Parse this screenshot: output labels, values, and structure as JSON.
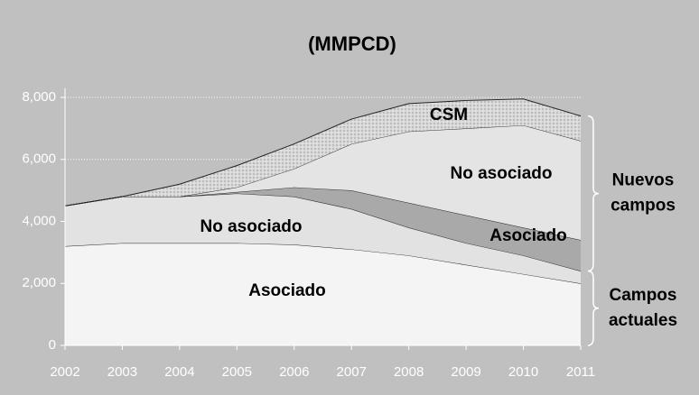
{
  "chart_data": {
    "type": "stacked_area",
    "title": "(MMPCD)",
    "x": [
      2002,
      2003,
      2004,
      2005,
      2006,
      2007,
      2008,
      2009,
      2010,
      2011
    ],
    "xlim": [
      2002,
      2011
    ],
    "xticks": [
      2002,
      2003,
      2004,
      2005,
      2006,
      2007,
      2008,
      2009,
      2010,
      2011
    ],
    "ylim": [
      0,
      8000
    ],
    "yticks": [
      0,
      {
        "value": 2000,
        "label": "2,000"
      },
      {
        "value": 4000,
        "label": "4,000"
      },
      {
        "value": 6000,
        "label": "6,000"
      },
      {
        "value": 8000,
        "label": "8,000"
      }
    ],
    "grid": true,
    "series": [
      {
        "name": "Asociado",
        "color": "#f4f4f4",
        "values": [
          3200,
          3300,
          3300,
          3300,
          3250,
          3100,
          2900,
          2600,
          2300,
          2000
        ]
      },
      {
        "name": "No asociado",
        "color": "#e2e2e2",
        "values": [
          1300,
          1500,
          1500,
          1600,
          1550,
          1300,
          900,
          700,
          600,
          400
        ]
      },
      {
        "name": "Asociado",
        "color": "#a9a9a9",
        "values": [
          0,
          0,
          0,
          50,
          300,
          600,
          800,
          900,
          900,
          1000
        ]
      },
      {
        "name": "No asociado",
        "color": "#e4e4e4",
        "values": [
          0,
          0,
          0,
          150,
          600,
          1500,
          2300,
          2800,
          3300,
          3200
        ]
      },
      {
        "name": "CSM",
        "color": "#d2d2d2",
        "values": [
          0,
          0,
          400,
          700,
          800,
          800,
          900,
          900,
          850,
          800
        ]
      }
    ],
    "groups": [
      {
        "lines": [
          "Nuevos",
          "campos"
        ]
      },
      {
        "lines": [
          "Campos",
          "actuales"
        ]
      }
    ]
  }
}
